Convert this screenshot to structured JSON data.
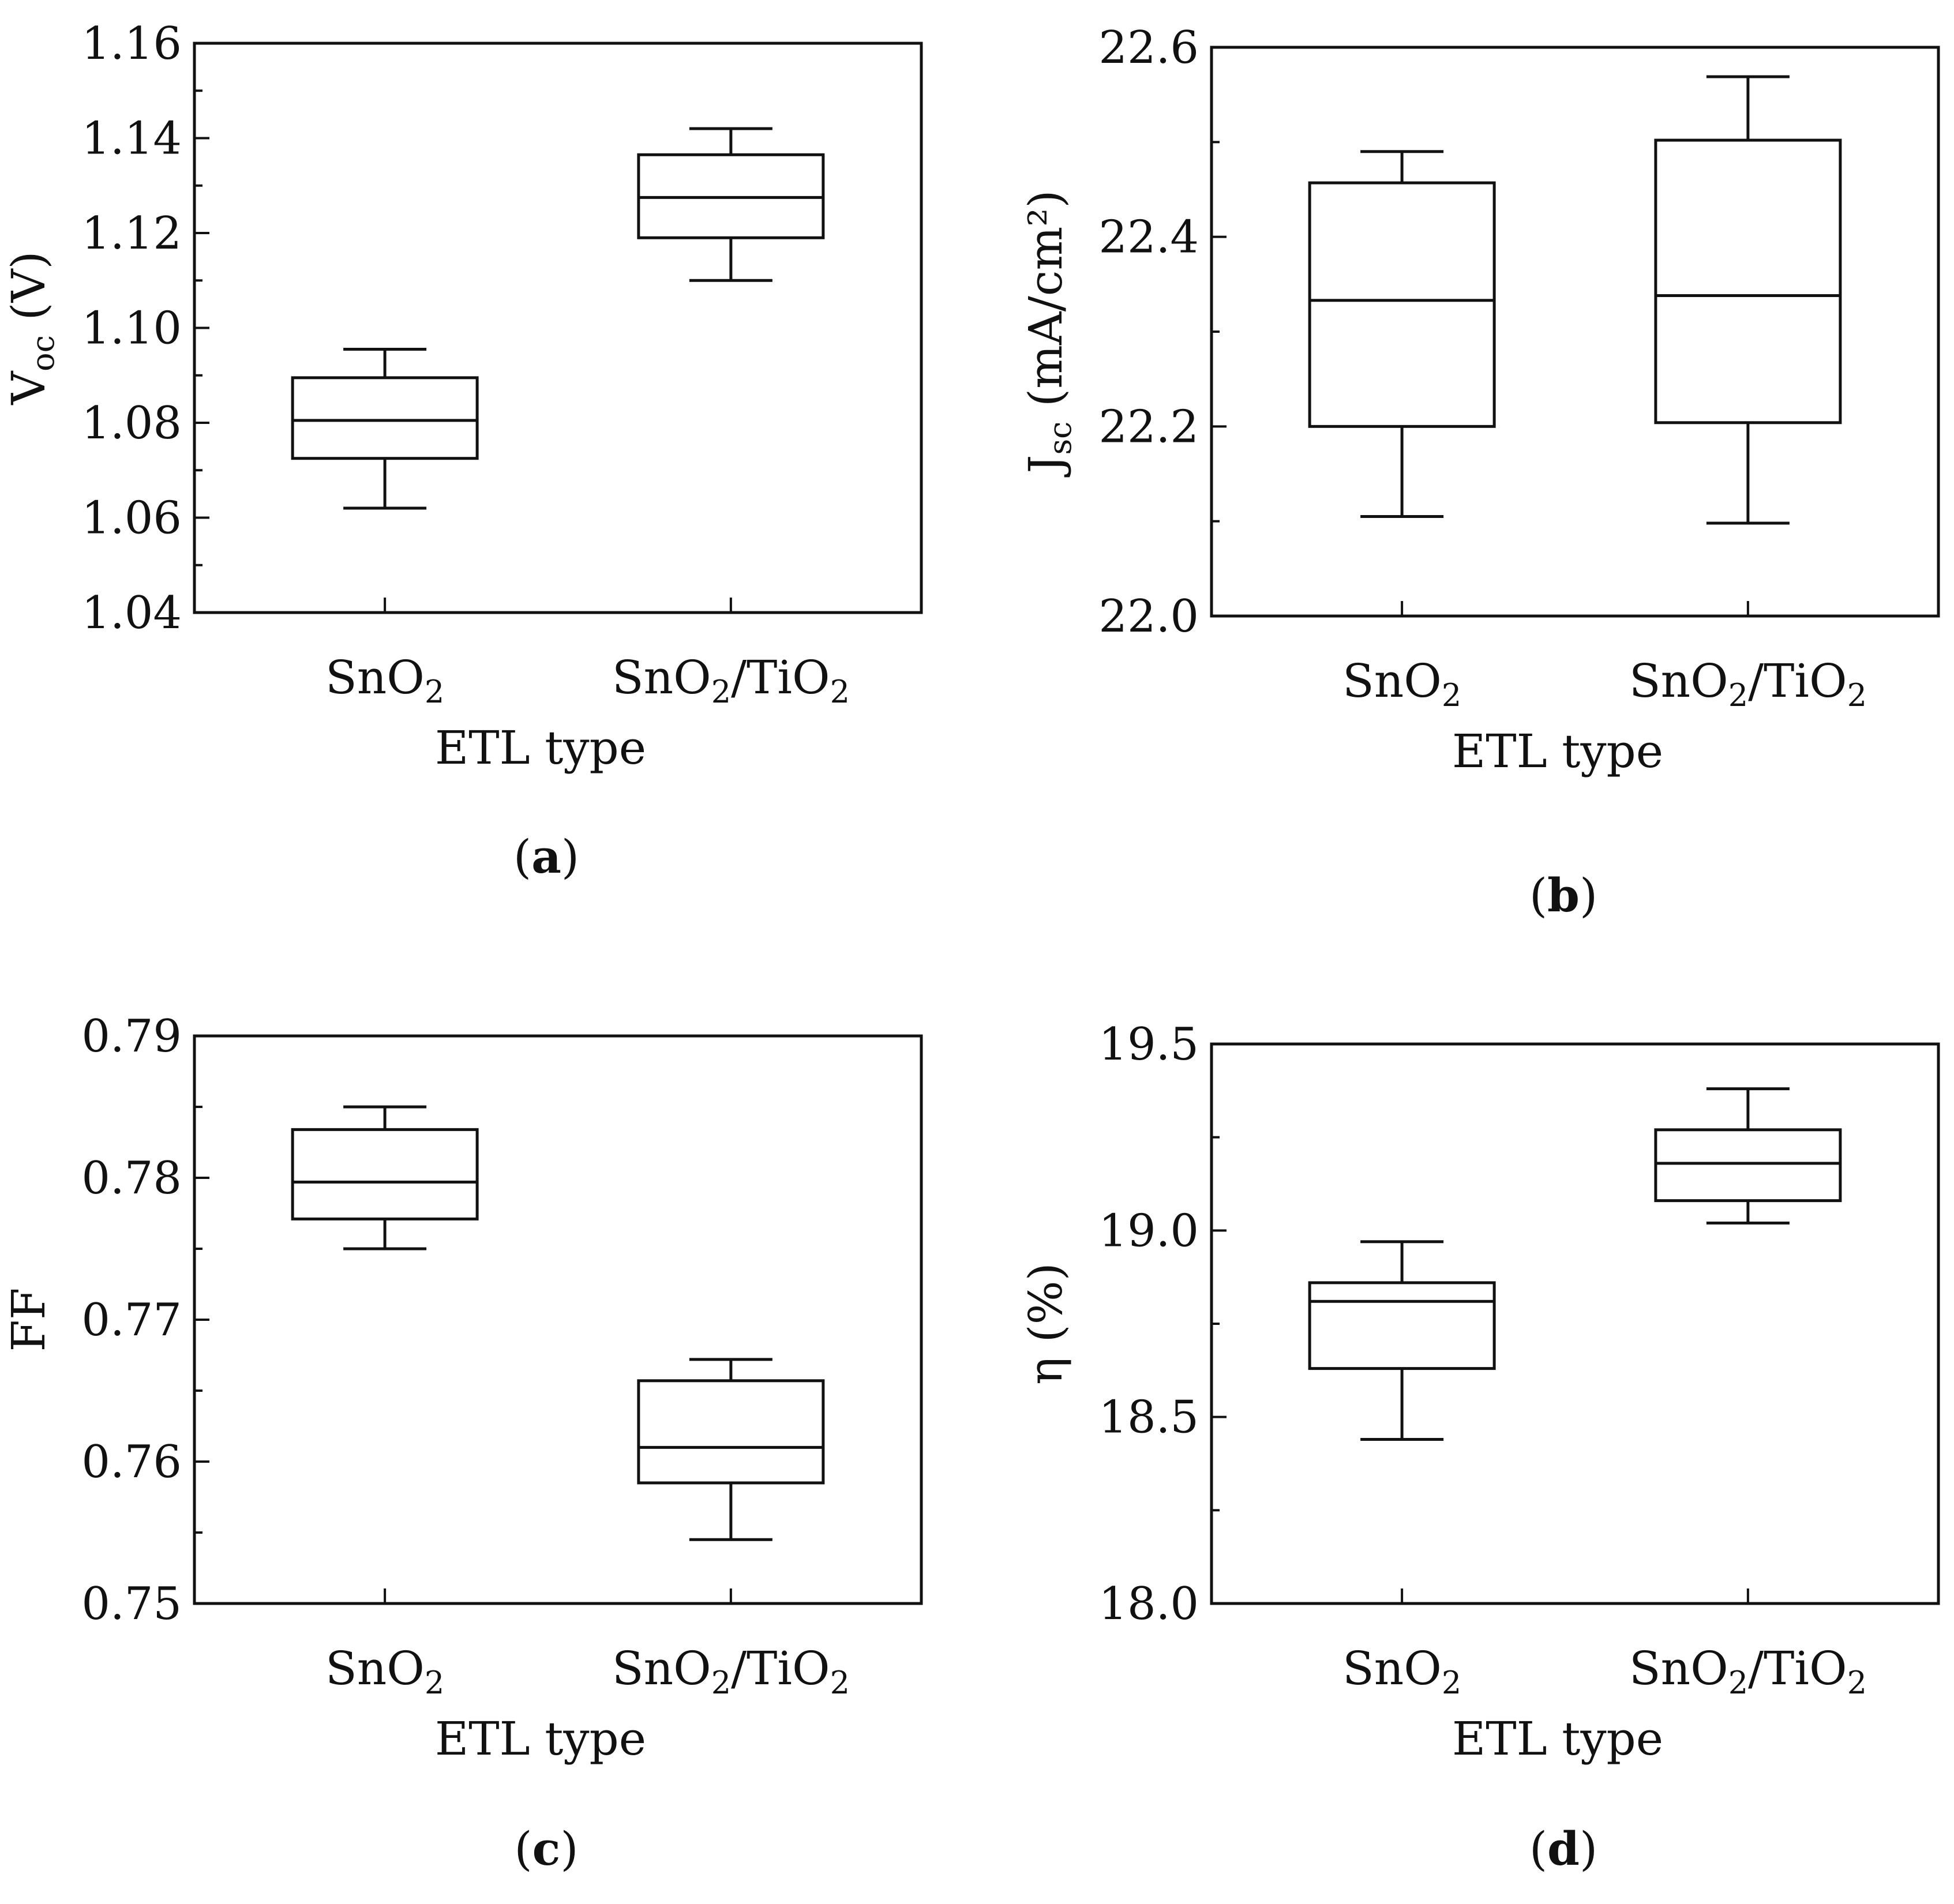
{
  "chart_data": [
    {
      "id": "a",
      "type": "box",
      "panel_label": "a",
      "xlabel": "ETL type",
      "ylabel": {
        "main": "V",
        "sub": "oc",
        "unit": " (V)"
      },
      "categories": [
        {
          "base": "SnO",
          "sub1": "2",
          "mid": "",
          "sub2": ""
        },
        {
          "base": "SnO",
          "sub1": "2",
          "mid": "/TiO",
          "sub2": "2"
        }
      ],
      "ylim": [
        1.04,
        1.16
      ],
      "yticks": [
        "1.04",
        "1.06",
        "1.08",
        "1.10",
        "1.12",
        "1.14",
        "1.16"
      ],
      "boxes": [
        {
          "name": "SnO2",
          "min": 1.062,
          "q1": 1.0725,
          "median": 1.0805,
          "q3": 1.0895,
          "max": 1.0955
        },
        {
          "name": "SnO2/TiO2",
          "min": 1.11,
          "q1": 1.119,
          "median": 1.1275,
          "q3": 1.1365,
          "max": 1.142
        }
      ]
    },
    {
      "id": "b",
      "type": "box",
      "panel_label": "b",
      "xlabel": "ETL type",
      "ylabel": {
        "main": "J",
        "sub": "sc",
        "unit": " (mA/cm²)"
      },
      "categories": [
        {
          "base": "SnO",
          "sub1": "2",
          "mid": "",
          "sub2": ""
        },
        {
          "base": "SnO",
          "sub1": "2",
          "mid": "/TiO",
          "sub2": "2"
        }
      ],
      "ylim": [
        22.0,
        22.6
      ],
      "yticks": [
        "22.0",
        "22.2",
        "22.4",
        "22.6"
      ],
      "boxes": [
        {
          "name": "SnO2",
          "min": 22.105,
          "q1": 22.2,
          "median": 22.333,
          "q3": 22.457,
          "max": 22.49
        },
        {
          "name": "SnO2/TiO2",
          "min": 22.098,
          "q1": 22.204,
          "median": 22.338,
          "q3": 22.502,
          "max": 22.569
        }
      ]
    },
    {
      "id": "c",
      "type": "box",
      "panel_label": "c",
      "xlabel": "ETL type",
      "ylabel": {
        "main": "FF",
        "sub": "",
        "unit": ""
      },
      "categories": [
        {
          "base": "SnO",
          "sub1": "2",
          "mid": "",
          "sub2": ""
        },
        {
          "base": "SnO",
          "sub1": "2",
          "mid": "/TiO",
          "sub2": "2"
        }
      ],
      "ylim": [
        0.75,
        0.79
      ],
      "yticks": [
        "0.75",
        "0.76",
        "0.77",
        "0.78",
        "0.79"
      ],
      "boxes": [
        {
          "name": "SnO2",
          "min": 0.775,
          "q1": 0.7771,
          "median": 0.7797,
          "q3": 0.7834,
          "max": 0.785
        },
        {
          "name": "SnO2/TiO2",
          "min": 0.7545,
          "q1": 0.7585,
          "median": 0.761,
          "q3": 0.7657,
          "max": 0.7672
        }
      ]
    },
    {
      "id": "d",
      "type": "box",
      "panel_label": "d",
      "xlabel": "ETL type",
      "ylabel": {
        "main": "η (%)",
        "sub": "",
        "unit": ""
      },
      "categories": [
        {
          "base": "SnO",
          "sub1": "2",
          "mid": "",
          "sub2": ""
        },
        {
          "base": "SnO",
          "sub1": "2",
          "mid": "/TiO",
          "sub2": "2"
        }
      ],
      "ylim": [
        18.0,
        19.5
      ],
      "yticks": [
        "18.0",
        "18.5",
        "19.0",
        "19.5"
      ],
      "boxes": [
        {
          "name": "SnO2",
          "min": 18.44,
          "q1": 18.63,
          "median": 18.81,
          "q3": 18.86,
          "max": 18.97
        },
        {
          "name": "SnO2/TiO2",
          "min": 19.02,
          "q1": 19.08,
          "median": 19.18,
          "q3": 19.27,
          "max": 19.38
        }
      ]
    }
  ]
}
